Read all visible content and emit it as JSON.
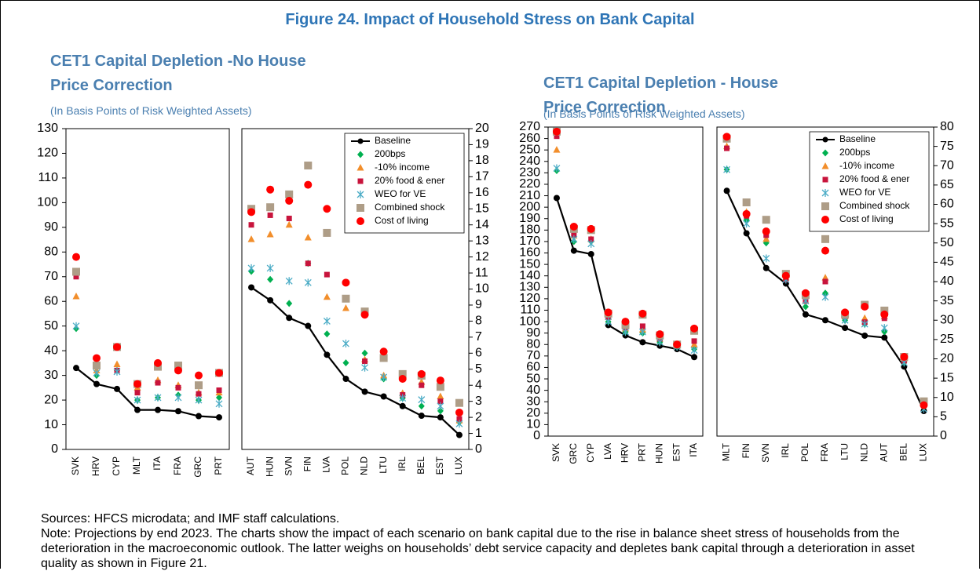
{
  "title": "Figure 24. Impact of Household Stress on Bank Capital",
  "chart_data": [
    {
      "type": "line",
      "title": "CET1 Capital Depletion -No House Price Correction",
      "subtitle": "(In Basis Points of Risk Weighted Assets)",
      "categories": [
        "SVK",
        "HRV",
        "CYP",
        "MLT",
        "ITA",
        "FRA",
        "GRC",
        "PRT"
      ],
      "yaxis": "left",
      "ylim": [
        0,
        130
      ],
      "yticks": [
        0,
        10,
        20,
        30,
        40,
        50,
        60,
        70,
        80,
        90,
        100,
        110,
        120,
        130
      ],
      "series": [
        {
          "color": "#000000",
          "marker": "line",
          "values": [
            33,
            26.5,
            24.5,
            16,
            16,
            15.5,
            13.5,
            13
          ]
        },
        {
          "color": "#00b050",
          "marker": "diamond",
          "values": [
            49,
            30,
            32,
            20,
            21,
            22,
            20,
            21
          ]
        },
        {
          "color": "#f28e2b",
          "marker": "triangle",
          "values": [
            62,
            32,
            34.5,
            25,
            28,
            26,
            23,
            23
          ]
        },
        {
          "color": "#c8143c",
          "marker": "square",
          "values": [
            70,
            34,
            32,
            23,
            27,
            25,
            22.5,
            24
          ]
        },
        {
          "color": "#4bacc6",
          "marker": "asterisk",
          "values": [
            50,
            31,
            31.5,
            20,
            21,
            21,
            20,
            18.5
          ]
        },
        {
          "color": "#ae9d87",
          "marker": "bigsquare",
          "values": [
            72,
            34,
            41.5,
            26.5,
            33.5,
            34,
            26,
            31
          ]
        },
        {
          "color": "#ff0000",
          "marker": "circle",
          "values": [
            78,
            37,
            41.5,
            26.5,
            35,
            32,
            30,
            31
          ]
        }
      ]
    },
    {
      "type": "line",
      "categories": [
        "AUT",
        "HUN",
        "SVN",
        "FIN",
        "LVA",
        "POL",
        "NLD",
        "LTU",
        "IRL",
        "BEL",
        "EST",
        "LUX"
      ],
      "yaxis": "right",
      "ylim": [
        0,
        20
      ],
      "yticks": [
        0,
        1,
        2,
        3,
        4,
        5,
        6,
        7,
        8,
        9,
        10,
        11,
        12,
        13,
        14,
        15,
        16,
        17,
        18,
        19,
        20
      ],
      "legend": "upper right",
      "series": [
        {
          "name": "Baseline",
          "color": "#000000",
          "marker": "line",
          "values": [
            10.1,
            9.3,
            8.2,
            7.7,
            5.9,
            4.4,
            3.6,
            3.3,
            2.7,
            2.1,
            2.0,
            0.9
          ]
        },
        {
          "name": "200bps",
          "color": "#00b050",
          "marker": "diamond",
          "values": [
            11.1,
            10.6,
            9.1,
            11.6,
            7.2,
            5.4,
            6.0,
            4.4,
            3.2,
            2.7,
            2.4,
            1.7
          ]
        },
        {
          "name": "-10% income",
          "color": "#f28e2b",
          "marker": "triangle",
          "values": [
            13.1,
            13.4,
            14.0,
            13.2,
            9.5,
            8.8,
            5.6,
            4.6,
            3.5,
            4.2,
            3.3,
            1.8
          ]
        },
        {
          "name": "20% food & ener",
          "color": "#c8143c",
          "marker": "square",
          "values": [
            14.0,
            14.6,
            14.4,
            11.6,
            10.9,
            9.4,
            5.5,
            5.7,
            3.4,
            4.0,
            3.0,
            1.9
          ]
        },
        {
          "name": "WEO for VE",
          "color": "#4bacc6",
          "marker": "asterisk",
          "values": [
            11.3,
            11.3,
            10.5,
            10.4,
            8.0,
            6.6,
            5.1,
            4.5,
            3.2,
            3.1,
            2.7,
            1.6
          ]
        },
        {
          "name": "Combined shock",
          "color": "#ae9d87",
          "marker": "bigsquare",
          "values": [
            15.0,
            15.1,
            15.9,
            17.7,
            13.5,
            9.4,
            8.6,
            5.7,
            4.7,
            4.6,
            3.9,
            2.9
          ]
        },
        {
          "name": "Cost of living",
          "color": "#ff0000",
          "marker": "circle",
          "values": [
            14.8,
            16.2,
            15.5,
            16.5,
            15.0,
            10.4,
            8.4,
            6.1,
            4.4,
            4.7,
            4.3,
            2.3
          ]
        }
      ]
    },
    {
      "type": "line",
      "title": "CET1 Capital Depletion - House Price Correction",
      "subtitle": "(In Basis Points of Risk Weighted Assets)",
      "categories": [
        "SVK",
        "GRC",
        "CYP",
        "LVA",
        "HRV",
        "PRT",
        "HUN",
        "EST",
        "ITA"
      ],
      "yaxis": "left",
      "ylim": [
        0,
        270
      ],
      "yticks": [
        0,
        10,
        20,
        30,
        40,
        50,
        60,
        70,
        80,
        90,
        100,
        110,
        120,
        130,
        140,
        150,
        160,
        170,
        180,
        190,
        200,
        210,
        220,
        230,
        240,
        250,
        260,
        270
      ],
      "series": [
        {
          "color": "#000000",
          "marker": "line",
          "values": [
            208,
            162,
            159,
            97,
            88,
            82,
            79,
            76,
            69
          ]
        },
        {
          "color": "#00b050",
          "marker": "diamond",
          "values": [
            232,
            170,
            170,
            100,
            91,
            90,
            82,
            78,
            76
          ]
        },
        {
          "color": "#f28e2b",
          "marker": "triangle",
          "values": [
            250,
            175,
            172,
            104,
            94,
            93,
            85,
            79,
            80
          ]
        },
        {
          "color": "#c8143c",
          "marker": "square",
          "values": [
            262,
            176,
            172,
            104,
            95,
            96,
            85,
            79,
            83
          ]
        },
        {
          "color": "#4bacc6",
          "marker": "asterisk",
          "values": [
            234,
            172,
            168,
            100,
            91,
            91,
            82,
            78,
            75
          ]
        },
        {
          "color": "#ae9d87",
          "marker": "bigsquare",
          "values": [
            266,
            181,
            180,
            107,
            97,
            106,
            88,
            80,
            92
          ]
        },
        {
          "color": "#ff0000",
          "marker": "circle",
          "values": [
            266,
            183,
            181,
            108,
            100,
            107,
            89,
            80,
            94
          ]
        }
      ]
    },
    {
      "type": "line",
      "categories": [
        "MLT",
        "FIN",
        "SVN",
        "IRL",
        "POL",
        "FRA",
        "LTU",
        "NLD",
        "AUT",
        "BEL",
        "LUX"
      ],
      "yaxis": "right",
      "ylim": [
        0,
        80
      ],
      "yticks": [
        0,
        5,
        10,
        15,
        20,
        25,
        30,
        35,
        40,
        45,
        50,
        55,
        60,
        65,
        70,
        75,
        80
      ],
      "legend": "upper right",
      "series": [
        {
          "name": "Baseline",
          "color": "#000000",
          "marker": "line",
          "values": [
            63.5,
            52.5,
            43.5,
            39.5,
            31.5,
            30,
            28,
            26,
            25.5,
            18,
            6.5
          ]
        },
        {
          "name": "200bps",
          "color": "#00b050",
          "marker": "diamond",
          "values": [
            69,
            56,
            50,
            40.5,
            33.5,
            37,
            30,
            29,
            27,
            19,
            7.5
          ]
        },
        {
          "name": "-10% income",
          "color": "#f28e2b",
          "marker": "triangle",
          "values": [
            75,
            58,
            51,
            41,
            35,
            41,
            31,
            30.5,
            31,
            20,
            8.5
          ]
        },
        {
          "name": "20% food & ener",
          "color": "#c8143c",
          "marker": "square",
          "values": [
            74.5,
            57,
            52,
            40.5,
            35,
            40,
            31,
            29.5,
            30.5,
            19.5,
            8
          ]
        },
        {
          "name": "WEO for VE",
          "color": "#4bacc6",
          "marker": "asterisk",
          "values": [
            69,
            55,
            46,
            40.5,
            35,
            36,
            30,
            29,
            28,
            19,
            7
          ]
        },
        {
          "name": "Combined shock",
          "color": "#ae9d87",
          "marker": "bigsquare",
          "values": [
            77,
            60.5,
            56,
            42,
            36.5,
            51,
            31.5,
            34,
            32.5,
            20.5,
            9
          ]
        },
        {
          "name": "Cost of living",
          "color": "#ff0000",
          "marker": "circle",
          "values": [
            77.5,
            57.5,
            53,
            41.5,
            37,
            48,
            32,
            33.5,
            31.5,
            20.5,
            8
          ]
        }
      ]
    }
  ],
  "sources": "Sources: HFCS microdata; and IMF staff calculations.",
  "note": "Note: Projections by end 2023. The charts show the impact of each scenario on bank capital due to the rise in balance sheet stress of households from the deterioration in the macroeconomic outlook. The latter weighs on households’ debt service capacity and depletes bank capital through a deterioration in asset quality as shown in Figure 21."
}
